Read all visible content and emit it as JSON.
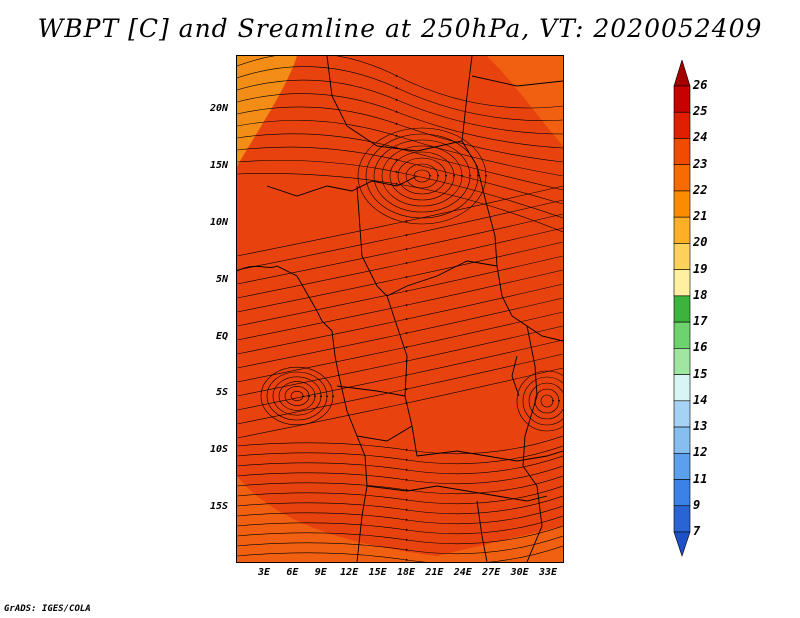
{
  "title": "WBPT [C] and Sreamline at 250hPa, VT: 2020052409",
  "credit": "GrADS: IGES/COLA",
  "map": {
    "latitude_labels": [
      "20N",
      "15N",
      "10N",
      "5N",
      "EQ",
      "5S",
      "10S",
      "15S"
    ],
    "longitude_labels": [
      "3E",
      "6E",
      "9E",
      "12E",
      "15E",
      "18E",
      "21E",
      "24E",
      "27E",
      "30E",
      "33E"
    ],
    "field_colors": {
      "dominant": "#e8420e",
      "warm_patch": "#f06010",
      "cool_edge": "#f59a18"
    }
  },
  "colorbar": {
    "labels": [
      "26",
      "25",
      "24",
      "23",
      "22",
      "21",
      "20",
      "19",
      "18",
      "17",
      "16",
      "15",
      "14",
      "13",
      "12",
      "11",
      "9",
      "7"
    ],
    "colors": [
      "#a50000",
      "#c80000",
      "#e11e00",
      "#f04b00",
      "#f86b00",
      "#fa8c00",
      "#fbb026",
      "#fdd25a",
      "#fdf0a0",
      "#3cb33c",
      "#6ed26e",
      "#a0e6a0",
      "#d7f5f5",
      "#a6d2f5",
      "#86bef0",
      "#5aa0eb",
      "#3c82e6",
      "#2a64d2",
      "#1e50c8"
    ]
  }
}
